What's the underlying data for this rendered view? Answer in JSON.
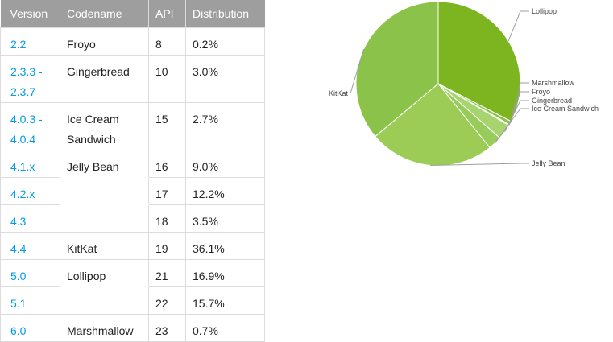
{
  "table": {
    "headers": [
      "Version",
      "Codename",
      "API",
      "Distribution"
    ],
    "rows": [
      {
        "version": "2.2",
        "codename": "Froyo",
        "api": "8",
        "distribution": "0.2%"
      },
      {
        "version": "2.3.3 -\n2.3.7",
        "codename": "Gingerbread",
        "api": "10",
        "distribution": "3.0%"
      },
      {
        "version": "4.0.3 -\n4.0.4",
        "codename": "Ice Cream\nSandwich",
        "api": "15",
        "distribution": "2.7%"
      },
      {
        "version": "4.1.x",
        "codename": "Jelly Bean",
        "api": "16",
        "distribution": "9.0%"
      },
      {
        "version": "4.2.x",
        "codename": "",
        "api": "17",
        "distribution": "12.2%"
      },
      {
        "version": "4.3",
        "codename": "",
        "api": "18",
        "distribution": "3.5%"
      },
      {
        "version": "4.4",
        "codename": "KitKat",
        "api": "19",
        "distribution": "36.1%"
      },
      {
        "version": "5.0",
        "codename": "Lollipop",
        "api": "21",
        "distribution": "16.9%"
      },
      {
        "version": "5.1",
        "codename": "",
        "api": "22",
        "distribution": "15.7%"
      },
      {
        "version": "6.0",
        "codename": "Marshmallow",
        "api": "23",
        "distribution": "0.7%"
      }
    ]
  },
  "chart_data": {
    "type": "pie",
    "title": "",
    "slices": [
      {
        "name": "Lollipop",
        "value": 32.6,
        "color": "#7cb520"
      },
      {
        "name": "Marshmallow",
        "value": 0.7,
        "color": "#8bc34a"
      },
      {
        "name": "Froyo",
        "value": 0.2,
        "color": "#b6dc85"
      },
      {
        "name": "Gingerbread",
        "value": 3.0,
        "color": "#a8d46f"
      },
      {
        "name": "Ice Cream Sandwich",
        "value": 2.7,
        "color": "#98cc5a"
      },
      {
        "name": "Jelly Bean",
        "value": 24.7,
        "color": "#9ccc55"
      },
      {
        "name": "KitKat",
        "value": 36.1,
        "color": "#8bc34a"
      }
    ],
    "start_angle_deg": -90,
    "labels": [
      "Lollipop",
      "Marshmallow",
      "Froyo",
      "Gingerbread",
      "Ice Cream Sandwich",
      "Jelly Bean",
      "KitKat"
    ],
    "label_placement": "outside with leader lines"
  }
}
